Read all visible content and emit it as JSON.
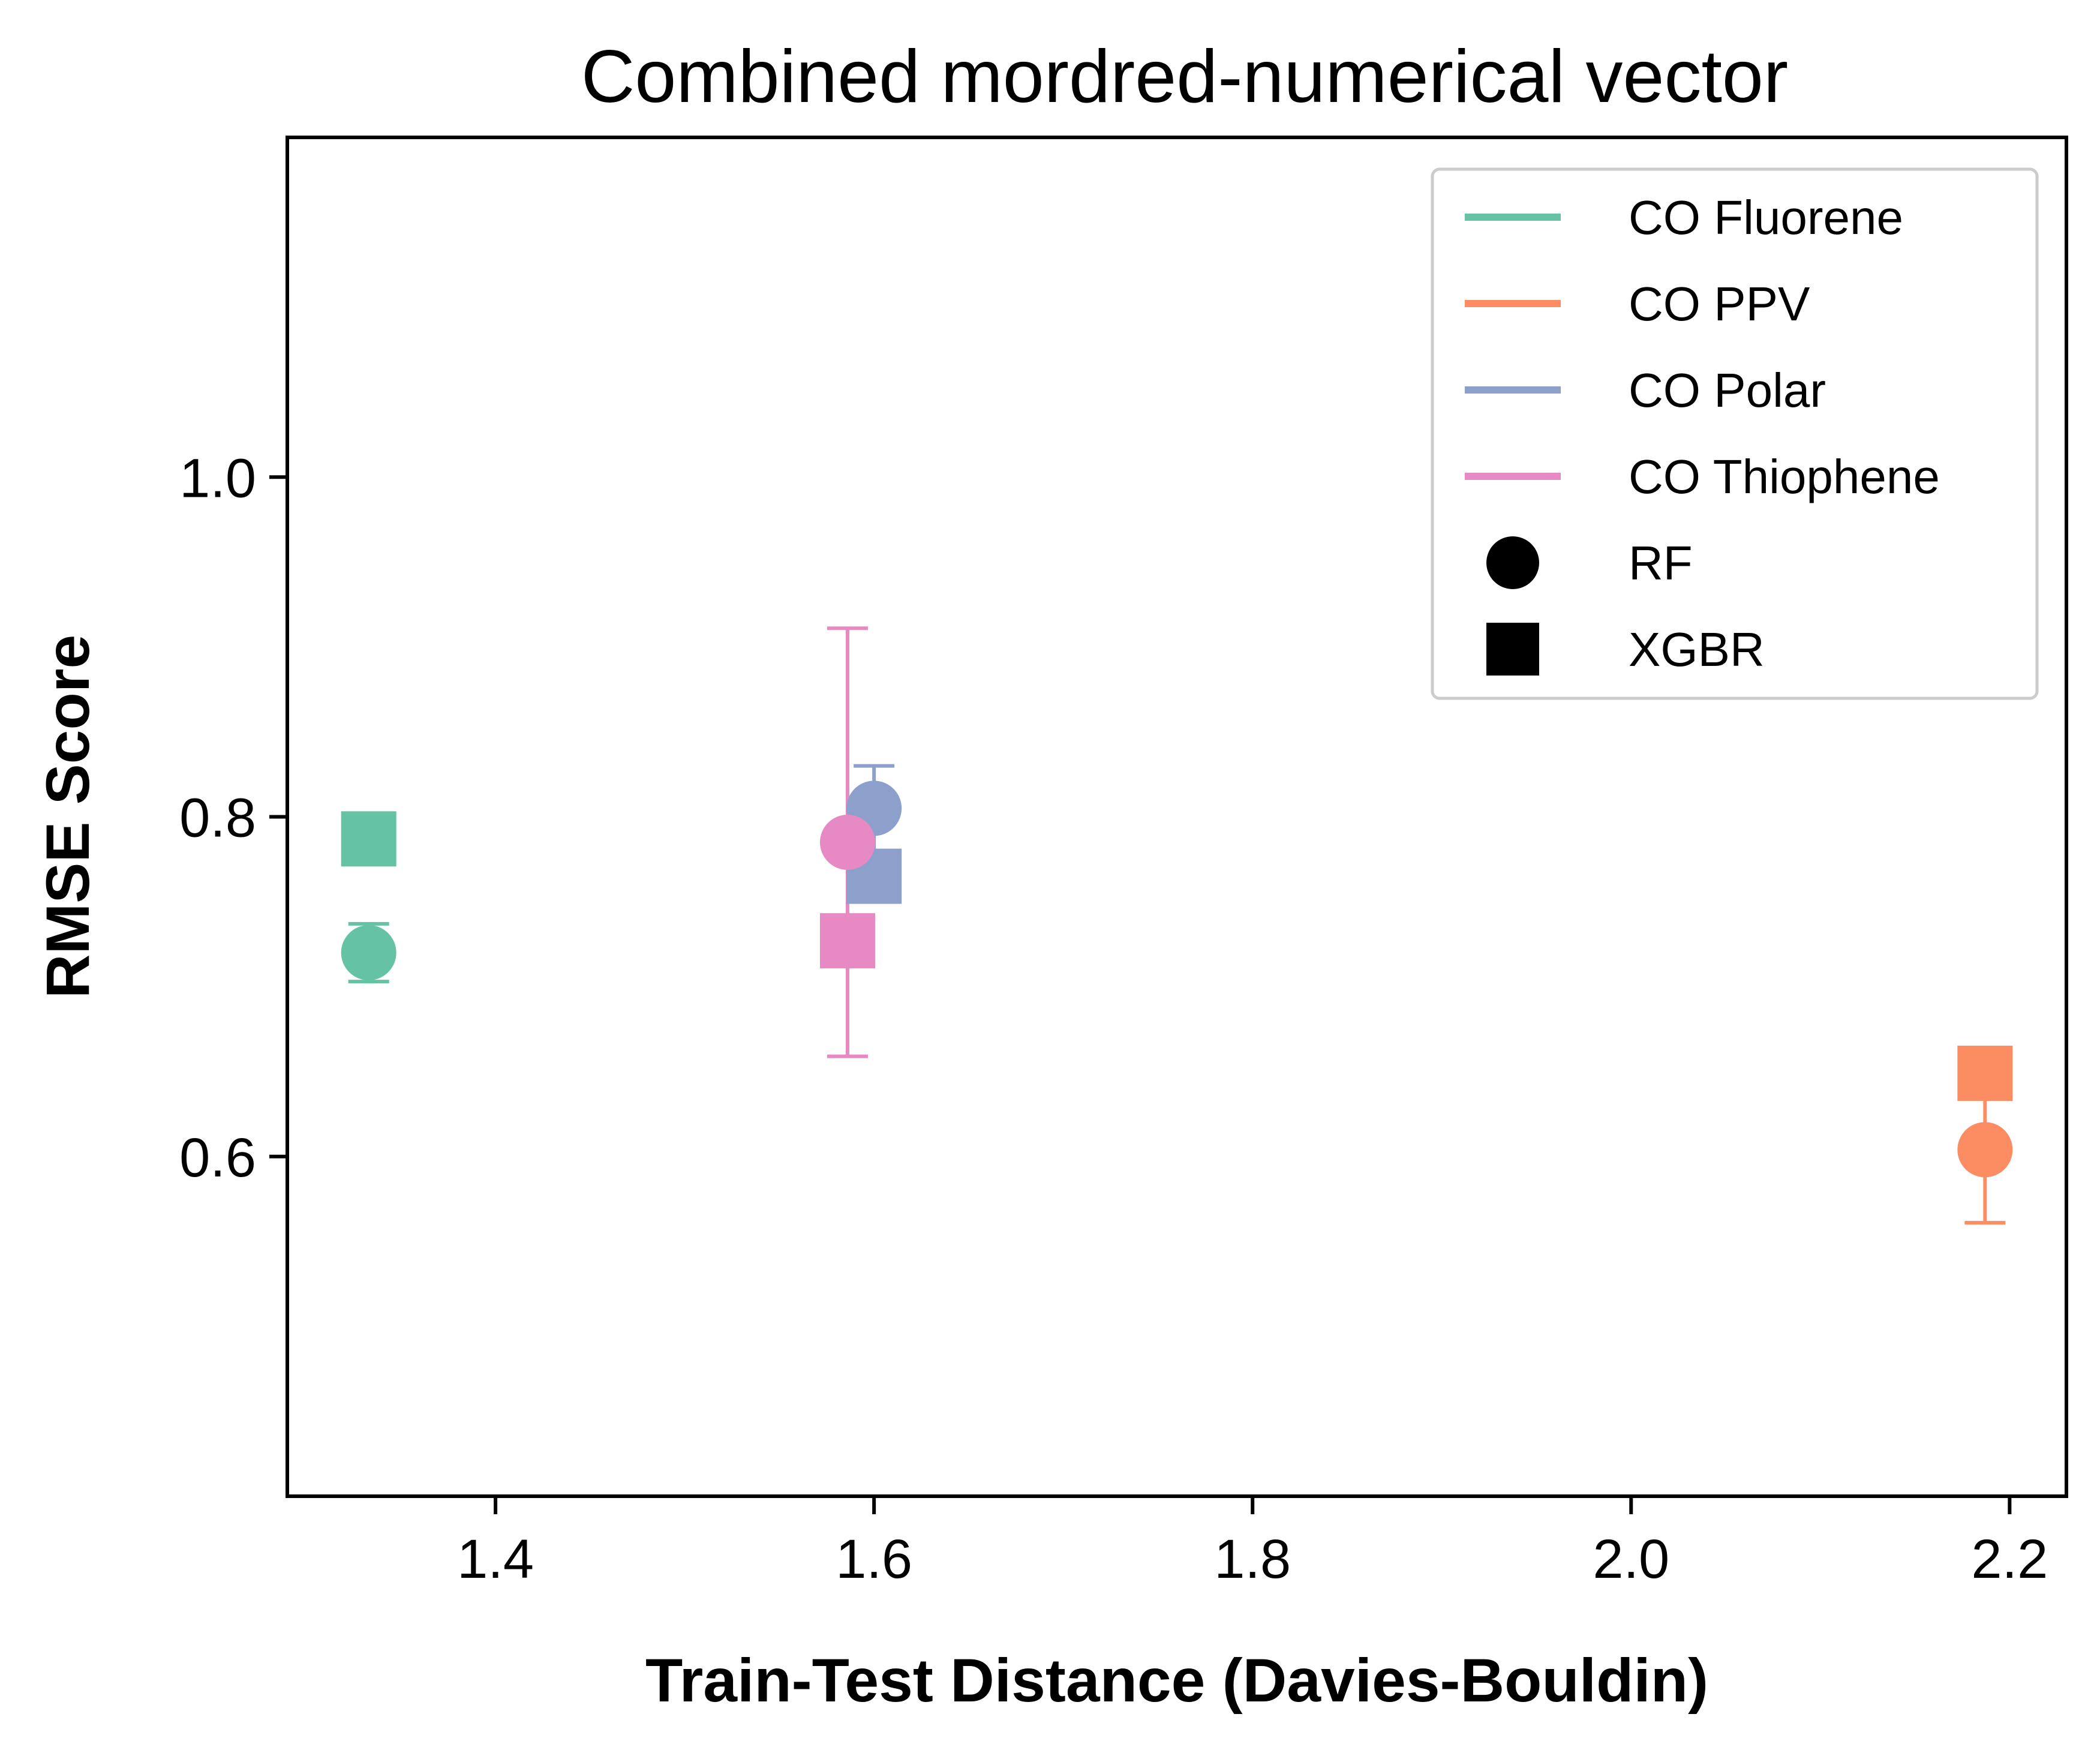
{
  "chart_data": {
    "type": "scatter",
    "title": "Combined mordred-numerical vector",
    "xlabel": "Train-Test Distance (Davies-Bouldin)",
    "ylabel": "RMSE Score",
    "xlim": [
      1.29,
      2.23
    ],
    "ylim": [
      0.4,
      1.2
    ],
    "x_ticks": [
      1.4,
      1.6,
      1.8,
      2.0,
      2.2
    ],
    "x_tick_labels": [
      "1.4",
      "1.6",
      "1.8",
      "2.0",
      "2.2"
    ],
    "y_ticks": [
      0.6,
      0.8,
      1.0
    ],
    "y_tick_labels": [
      "0.6",
      "0.8",
      "1.0"
    ],
    "grid": false,
    "legend_position": "top-right",
    "series": [
      {
        "name": "CO Fluorene",
        "color": "#66c2a5",
        "RF": {
          "x": 1.333,
          "y": 0.72,
          "err": 0.017
        },
        "XGBR": {
          "x": 1.333,
          "y": 0.787,
          "err": 0.0
        }
      },
      {
        "name": "CO PPV",
        "color": "#fc8d62",
        "RF": {
          "x": 2.187,
          "y": 0.604,
          "err": 0.043
        },
        "XGBR": {
          "x": 2.187,
          "y": 0.649,
          "err": 0.0
        }
      },
      {
        "name": "CO Polar",
        "color": "#8da0cb",
        "RF": {
          "x": 1.6,
          "y": 0.805,
          "err": 0.025
        },
        "XGBR": {
          "x": 1.6,
          "y": 0.765,
          "err": 0.012
        }
      },
      {
        "name": "CO Thiophene",
        "color": "#e78ac3",
        "RF": {
          "x": 1.586,
          "y": 0.785,
          "err": 0.126
        },
        "XGBR": {
          "x": 1.586,
          "y": 0.727,
          "err": 0.0
        }
      }
    ],
    "marker_legend": [
      {
        "name": "RF",
        "marker": "circle"
      },
      {
        "name": "XGBR",
        "marker": "square"
      }
    ]
  }
}
